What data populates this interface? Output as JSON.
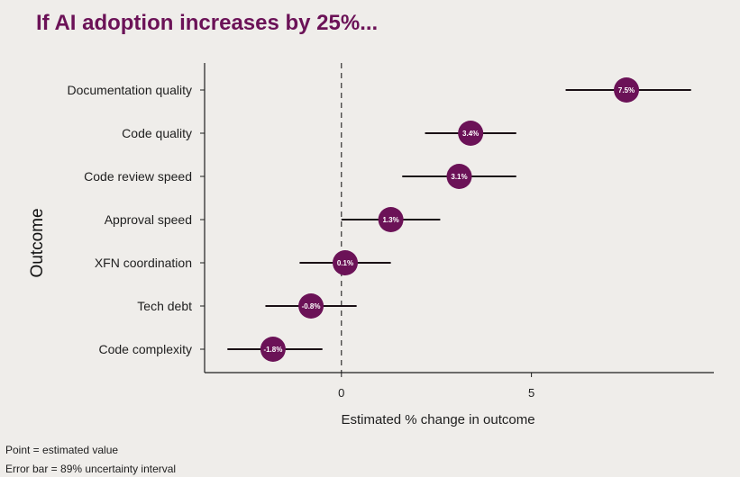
{
  "colors": {
    "background": "#efedea",
    "accent": "#6b1257",
    "ink": "#1e1e1e"
  },
  "chart_data": {
    "type": "scatter",
    "title": "If AI adoption increases by 25%...",
    "xlabel": "Estimated % change in outcome",
    "ylabel": "Outcome",
    "xlim": [
      -3.6,
      9.8
    ],
    "xticks": [
      0,
      5
    ],
    "reference_line_x": 0,
    "grid": false,
    "points": [
      {
        "category": "Documentation quality",
        "value": 7.5,
        "label": "7.5%",
        "lower": 5.9,
        "upper": 9.2
      },
      {
        "category": "Code quality",
        "value": 3.4,
        "label": "3.4%",
        "lower": 2.2,
        "upper": 4.6
      },
      {
        "category": "Code review speed",
        "value": 3.1,
        "label": "3.1%",
        "lower": 1.6,
        "upper": 4.6
      },
      {
        "category": "Approval speed",
        "value": 1.3,
        "label": "1.3%",
        "lower": 0.0,
        "upper": 2.6
      },
      {
        "category": "XFN coordination",
        "value": 0.1,
        "label": "0.1%",
        "lower": -1.1,
        "upper": 1.3
      },
      {
        "category": "Tech debt",
        "value": -0.8,
        "label": "-0.8%",
        "lower": -2.0,
        "upper": 0.4
      },
      {
        "category": "Code complexity",
        "value": -1.8,
        "label": "-1.8%",
        "lower": -3.0,
        "upper": -0.5
      }
    ]
  },
  "notes": {
    "point": "Point = estimated value",
    "error_bar": "Error bar = 89% uncertainty interval"
  }
}
